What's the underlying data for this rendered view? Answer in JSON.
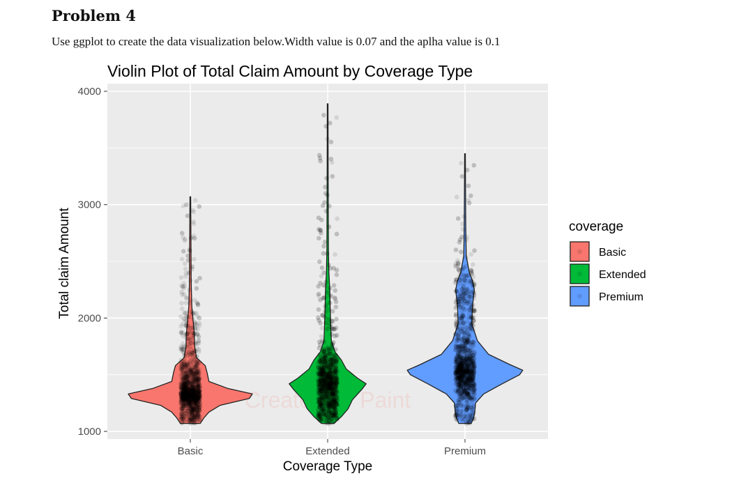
{
  "document": {
    "heading": "Problem 4",
    "instruction": "Use ggplot to create the data visualization below.Width value is 0.07 and the aplha value is 0.1"
  },
  "chart_data": {
    "type": "violin",
    "title": "Violin Plot of Total Claim Amount by Coverage Type",
    "xlabel": "Coverage Type",
    "ylabel": "Total claim Amount",
    "ylim": [
      920,
      4080
    ],
    "yticks": [
      1000,
      2000,
      3000,
      4000
    ],
    "categories": [
      "Basic",
      "Extended",
      "Premium"
    ],
    "legend": {
      "title": "coverage",
      "position": "right",
      "entries": [
        "Basic",
        "Extended",
        "Premium"
      ]
    },
    "jitter_width": 0.07,
    "point_alpha": 0.1,
    "grid": true,
    "background": "#EBEBEB",
    "watermark": "Created by Paint",
    "series": [
      {
        "name": "Basic",
        "color": "#F8766D",
        "min": 1070,
        "max": 3070,
        "profile": [
          [
            1070,
            0.16
          ],
          [
            1120,
            0.22
          ],
          [
            1170,
            0.3
          ],
          [
            1230,
            0.48
          ],
          [
            1290,
            0.95
          ],
          [
            1330,
            1.0
          ],
          [
            1380,
            0.6
          ],
          [
            1440,
            0.3
          ],
          [
            1520,
            0.27
          ],
          [
            1580,
            0.24
          ],
          [
            1650,
            0.1
          ],
          [
            1750,
            0.07
          ],
          [
            1850,
            0.065
          ],
          [
            1950,
            0.05
          ],
          [
            2100,
            0.025
          ],
          [
            2300,
            0.015
          ],
          [
            2500,
            0.012
          ],
          [
            2700,
            0.01
          ],
          [
            2900,
            0.008
          ],
          [
            3070,
            0.006
          ]
        ]
      },
      {
        "name": "Extended",
        "color": "#00BA38",
        "min": 1070,
        "max": 3890,
        "profile": [
          [
            1070,
            0.1
          ],
          [
            1130,
            0.22
          ],
          [
            1200,
            0.33
          ],
          [
            1280,
            0.4
          ],
          [
            1370,
            0.55
          ],
          [
            1420,
            0.62
          ],
          [
            1470,
            0.48
          ],
          [
            1550,
            0.3
          ],
          [
            1630,
            0.22
          ],
          [
            1700,
            0.12
          ],
          [
            1800,
            0.06
          ],
          [
            1950,
            0.05
          ],
          [
            2100,
            0.04
          ],
          [
            2250,
            0.035
          ],
          [
            2400,
            0.02
          ],
          [
            2600,
            0.012
          ],
          [
            2900,
            0.01
          ],
          [
            3300,
            0.008
          ],
          [
            3890,
            0.006
          ]
        ]
      },
      {
        "name": "Premium",
        "color": "#619CFF",
        "min": 1070,
        "max": 3450,
        "profile": [
          [
            1070,
            0.1
          ],
          [
            1120,
            0.14
          ],
          [
            1180,
            0.16
          ],
          [
            1250,
            0.17
          ],
          [
            1330,
            0.3
          ],
          [
            1420,
            0.6
          ],
          [
            1500,
            0.88
          ],
          [
            1540,
            0.93
          ],
          [
            1590,
            0.72
          ],
          [
            1680,
            0.38
          ],
          [
            1800,
            0.2
          ],
          [
            1950,
            0.11
          ],
          [
            2100,
            0.12
          ],
          [
            2250,
            0.15
          ],
          [
            2330,
            0.12
          ],
          [
            2400,
            0.07
          ],
          [
            2550,
            0.02
          ],
          [
            2800,
            0.012
          ],
          [
            3100,
            0.009
          ],
          [
            3450,
            0.006
          ]
        ]
      }
    ]
  }
}
